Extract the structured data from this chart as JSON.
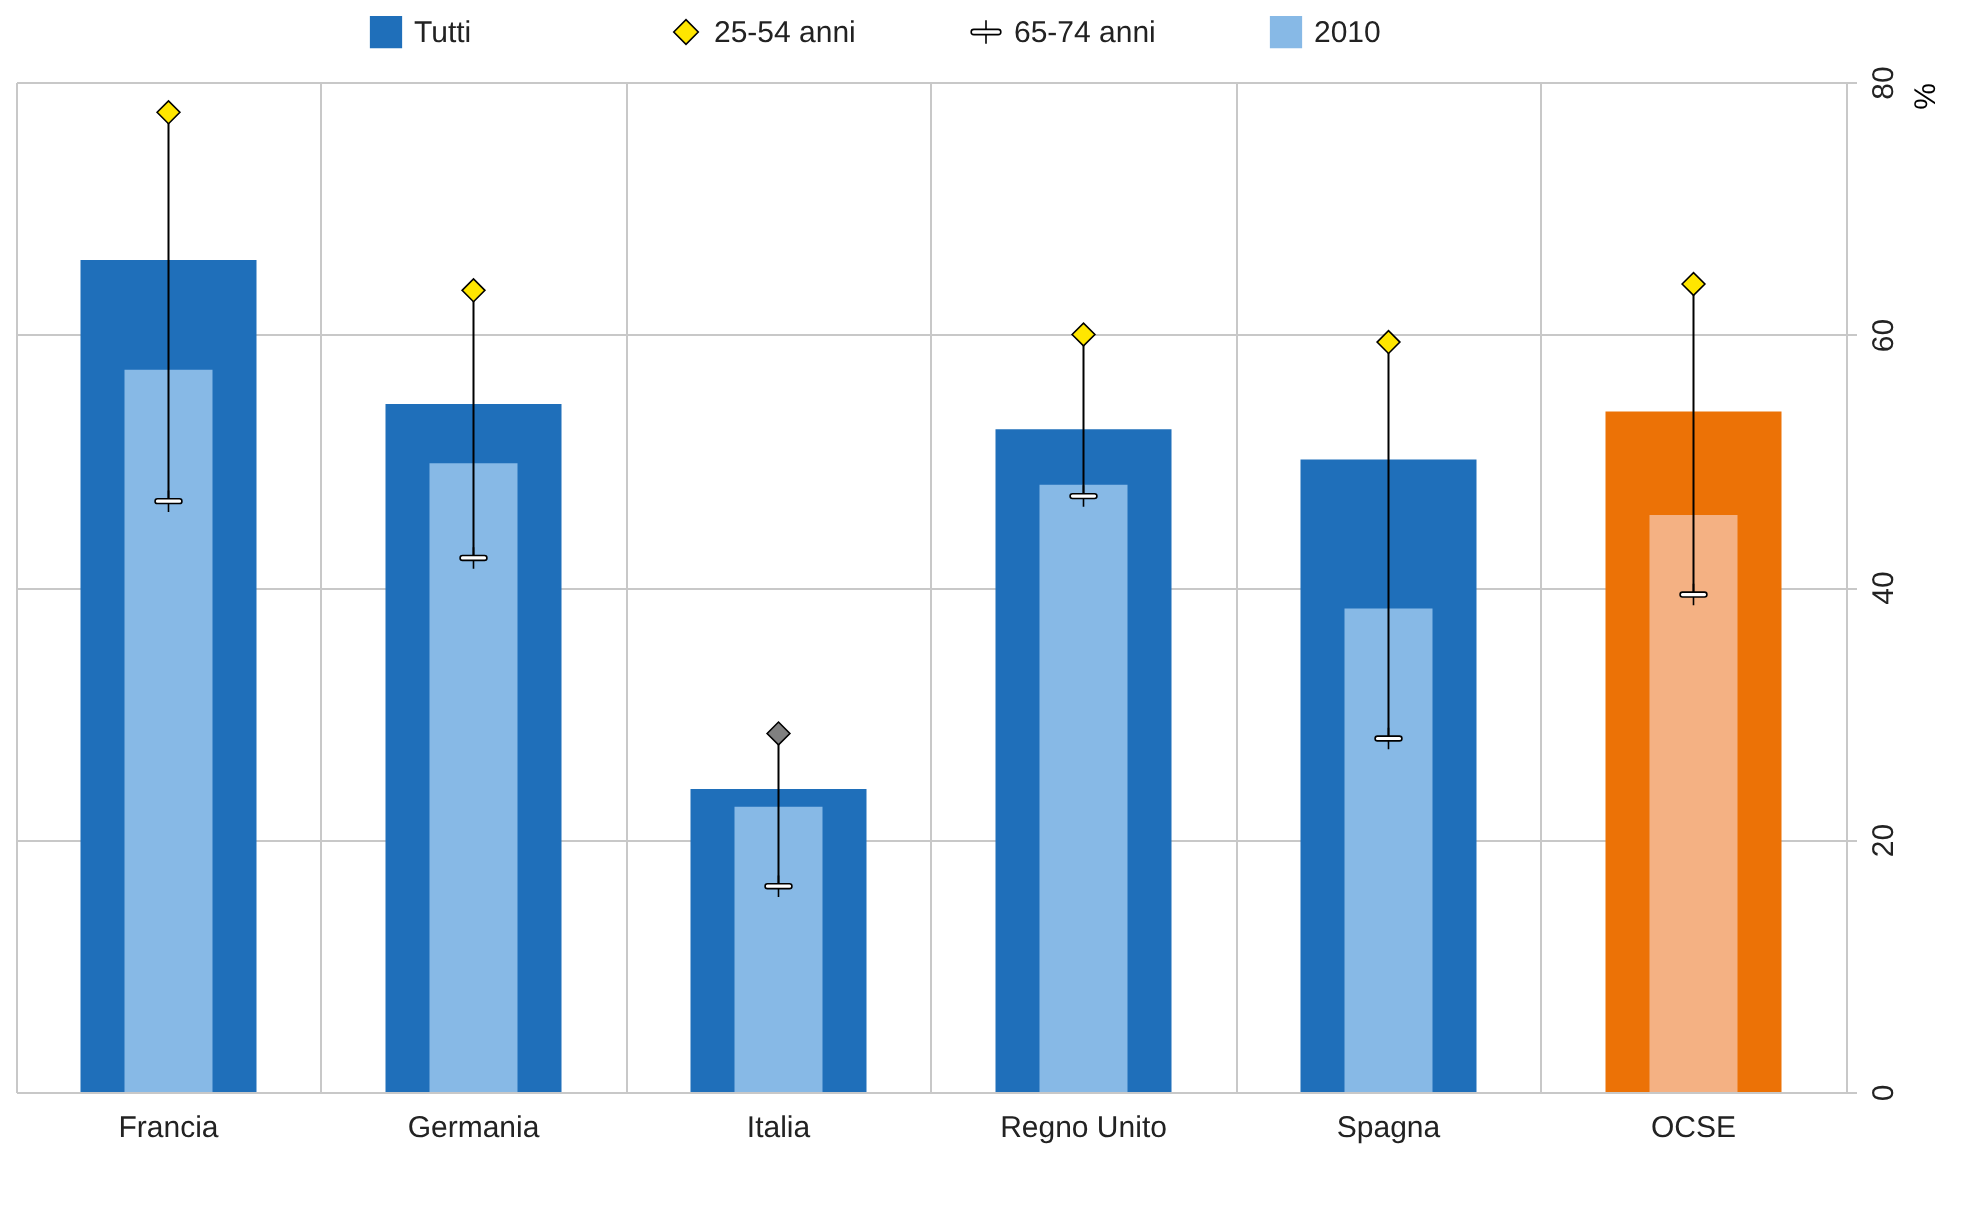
{
  "chart_data": {
    "type": "bar",
    "categories": [
      "Francia",
      "Germania",
      "Italia",
      "Regno Unito",
      "Spagna",
      "OCSE"
    ],
    "ylabel": "%",
    "ylim": [
      0,
      80
    ],
    "yticks": [
      0,
      20,
      40,
      60,
      80
    ],
    "grid": true,
    "legend": "top",
    "series": [
      {
        "name": "Tutti",
        "color": "#1f6fba",
        "colors": [
          "#1f6fba",
          "#1f6fba",
          "#1f6fba",
          "#1f6fba",
          "#1f6fba",
          "#ec7206"
        ],
        "values": [
          65.9,
          54.5,
          24.0,
          52.5,
          50.1,
          53.9
        ]
      },
      {
        "name": "25-54 anni",
        "type": "scatter",
        "marker": "diamond",
        "color": "#ffe600",
        "colors": [
          "#ffe600",
          "#ffe600",
          "#808080",
          "#ffe600",
          "#ffe600",
          "#ffe600"
        ],
        "values": [
          77.6,
          63.5,
          28.4,
          60.0,
          59.4,
          64.0
        ]
      },
      {
        "name": "65-74 anni",
        "type": "scatter",
        "color": "#ffffff",
        "colors": [
          "#ffffff",
          "#ffffff",
          "#ffffff",
          "#ffffff",
          "#ffffff",
          "#ffffff"
        ],
        "values": [
          46.8,
          42.3,
          16.3,
          47.2,
          28.0,
          39.4
        ]
      },
      {
        "name": "2010",
        "color": "#87b9e6",
        "colors": [
          "#87b9e6",
          "#87b9e6",
          "#87b9e6",
          "#87b9e6",
          "#87b9e6",
          "#f4b183"
        ],
        "values": [
          57.2,
          49.8,
          22.6,
          48.1,
          38.3,
          45.7
        ]
      }
    ]
  }
}
